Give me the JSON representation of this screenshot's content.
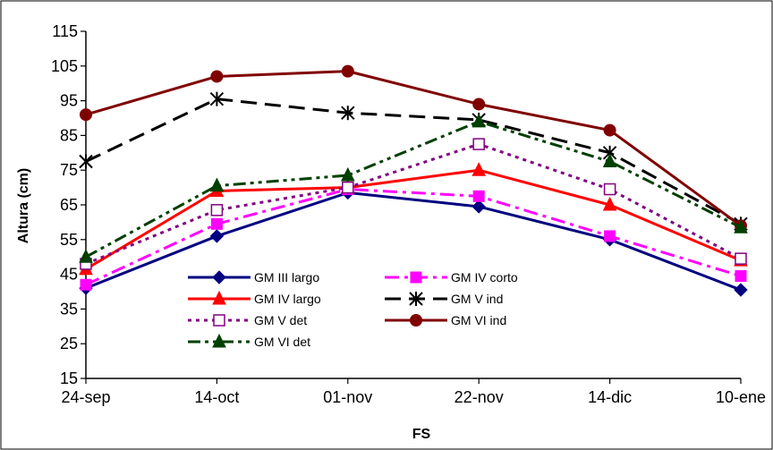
{
  "chart_data": {
    "type": "line",
    "xlabel": "FS",
    "ylabel": "Altura (cm)",
    "categories": [
      "24-sep",
      "14-oct",
      "01-nov",
      "22-nov",
      "14-dic",
      "10-ene"
    ],
    "ylim": [
      15,
      115
    ],
    "yticks": [
      15,
      25,
      35,
      45,
      55,
      65,
      75,
      85,
      95,
      105,
      115
    ],
    "grid": false,
    "legend_position": "lower-left inside plot",
    "series": [
      {
        "name": "GM III largo",
        "color": "#000080",
        "dash": "solid",
        "marker": "diamond",
        "values": [
          41,
          56,
          68.5,
          64.5,
          55,
          40.5
        ]
      },
      {
        "name": "GM IV corto",
        "color": "#ff00ff",
        "dash": "dashdot",
        "marker": "square",
        "values": [
          42,
          59.5,
          69.5,
          67.5,
          56,
          44.5
        ]
      },
      {
        "name": "GM IV largo",
        "color": "#ff0000",
        "dash": "solid",
        "marker": "triangle",
        "values": [
          46.5,
          69,
          70,
          75,
          65,
          49
        ]
      },
      {
        "name": "GM V ind",
        "color": "#000000",
        "dash": "dash",
        "marker": "asterisk",
        "values": [
          77.5,
          95.5,
          91.5,
          89.5,
          80,
          59.5
        ]
      },
      {
        "name": "GM V det",
        "color": "#800080",
        "dash": "dot",
        "marker": "square-open",
        "values": [
          48,
          63.5,
          70,
          82.5,
          69.5,
          49.5
        ]
      },
      {
        "name": "GM VI ind",
        "color": "#800000",
        "dash": "solid",
        "marker": "circle",
        "values": [
          91,
          102,
          103.5,
          94,
          86.5,
          59
        ]
      },
      {
        "name": "GM VI det",
        "color": "#004000",
        "dash": "dashdotdot",
        "marker": "triangle",
        "values": [
          50,
          70.5,
          73.5,
          89,
          77.5,
          58.5
        ]
      }
    ]
  }
}
